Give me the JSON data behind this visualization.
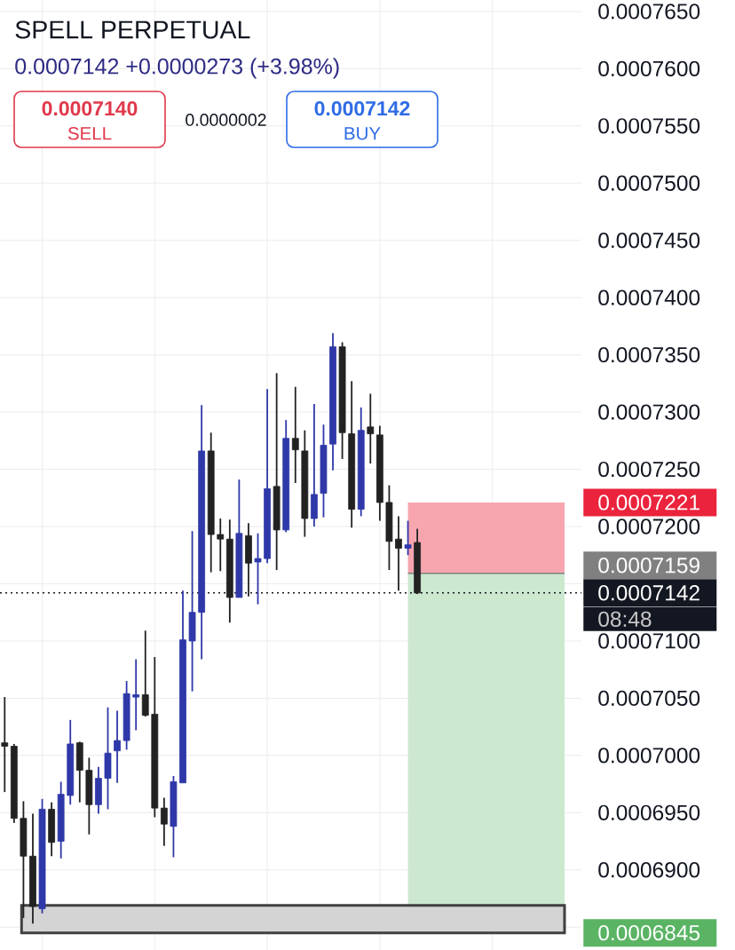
{
  "chart_data": {
    "type": "candlestick",
    "title": "SPELL PERPETUAL",
    "subtitle": "0.0007142 +0.0000273 (+3.98%)",
    "categories": [
      null,
      null,
      null,
      null,
      null,
      null,
      null,
      null,
      null,
      null,
      null,
      null,
      null,
      null,
      null,
      null,
      null,
      null,
      null,
      null,
      null,
      null,
      null,
      null,
      null,
      null,
      null,
      null,
      null,
      null,
      null,
      null,
      null,
      null,
      null,
      null,
      null,
      null,
      null,
      null,
      null,
      null,
      null,
      null,
      null,
      null,
      null,
      null,
      null,
      null,
      null,
      null,
      null,
      null,
      null,
      null,
      null,
      null,
      null,
      null,
      null,
      null
    ],
    "ohlc": [
      [
        0.0007011,
        0.0007051,
        0.0006968,
        0.0007008
      ],
      [
        0.0007008,
        0.000701,
        0.0006941,
        0.0006945
      ],
      [
        0.0006945,
        0.000696,
        0.0006858,
        0.0006912
      ],
      [
        0.0006912,
        0.0006949,
        0.0006853,
        0.0006868
      ],
      [
        0.0006866,
        0.0006962,
        0.0006862,
        0.0006953
      ],
      [
        0.0006953,
        0.0006959,
        0.0006912,
        0.0006924
      ],
      [
        0.0006925,
        0.0006977,
        0.000691,
        0.0006966
      ],
      [
        0.0006965,
        0.0007031,
        0.0006957,
        0.000701
      ],
      [
        0.0007011,
        0.0007012,
        0.0006959,
        0.0006987
      ],
      [
        0.0006987,
        0.0006998,
        0.0006931,
        0.0006957
      ],
      [
        0.0006957,
        0.000699,
        0.0006949,
        0.000698
      ],
      [
        0.000698,
        0.0007042,
        0.0006953,
        0.0007002
      ],
      [
        0.0007004,
        0.0007039,
        0.0006976,
        0.0007013
      ],
      [
        0.0007013,
        0.0007065,
        0.0007005,
        0.0007054
      ],
      [
        0.0007051,
        0.0007084,
        0.0007022,
        0.0007053
      ],
      [
        0.0007053,
        0.0007109,
        0.0007034,
        0.0007035
      ],
      [
        0.0007036,
        0.0007086,
        0.0006946,
        0.0006954
      ],
      [
        0.0006954,
        0.0006963,
        0.0006921,
        0.000694
      ],
      [
        0.0006938,
        0.0006982,
        0.0006911,
        0.0006977
      ],
      [
        0.0006976,
        0.0007144,
        0.0006976,
        0.0007101
      ],
      [
        0.00071,
        0.0007196,
        0.0007056,
        0.0007125
      ],
      [
        0.0007125,
        0.0007306,
        0.0007084,
        0.0007266
      ],
      [
        0.0007266,
        0.0007282,
        0.000716,
        0.0007193
      ],
      [
        0.0007193,
        0.0007207,
        0.0007161,
        0.0007189
      ],
      [
        0.0007189,
        0.0007206,
        0.0007116,
        0.0007138
      ],
      [
        0.0007138,
        0.0007241,
        0.0007138,
        0.0007194
      ],
      [
        0.0007192,
        0.0007203,
        0.0007139,
        0.0007168
      ],
      [
        0.0007169,
        0.0007194,
        0.0007132,
        0.0007172
      ],
      [
        0.0007172,
        0.000732,
        0.0007168,
        0.0007233
      ],
      [
        0.0007235,
        0.0007334,
        0.0007162,
        0.0007197
      ],
      [
        0.0007197,
        0.0007293,
        0.0007195,
        0.0007277
      ],
      [
        0.0007277,
        0.0007322,
        0.0007238,
        0.0007267
      ],
      [
        0.0007266,
        0.0007284,
        0.0007191,
        0.0007207
      ],
      [
        0.0007207,
        0.0007307,
        0.00072,
        0.0007228
      ],
      [
        0.0007229,
        0.0007289,
        0.0007208,
        0.0007271
      ],
      [
        0.0007272,
        0.0007369,
        0.0007249,
        0.0007357
      ],
      [
        0.0007357,
        0.0007361,
        0.0007259,
        0.0007282
      ],
      [
        0.0007281,
        0.0007327,
        0.0007199,
        0.0007215
      ],
      [
        0.0007215,
        0.0007304,
        0.0007209,
        0.0007284
      ],
      [
        0.0007287,
        0.0007316,
        0.0007255,
        0.0007281
      ],
      [
        0.000728,
        0.0007288,
        0.0007205,
        0.0007221
      ],
      [
        0.0007221,
        0.0007236,
        0.0007162,
        0.0007187
      ],
      [
        0.0007189,
        0.0007209,
        0.0007144,
        0.0007181
      ],
      [
        0.0007181,
        0.0007205,
        0.0007175,
        0.0007184
      ],
      [
        0.0007186,
        0.0007198,
        0.0007141,
        0.0007142
      ],
      null,
      null,
      null,
      null,
      null,
      null,
      null,
      null,
      null,
      null,
      null,
      null,
      null,
      null,
      null,
      null,
      null
    ],
    "colors": [
      "#222222",
      "#222222",
      "#222222",
      "#222222",
      "#2f38a8",
      "#222222",
      "#2f38a8",
      "#2f38a8",
      "#222222",
      "#222222",
      "#2f38a8",
      "#2f38a8",
      "#2f38a8",
      "#2f38a8",
      "#2f38a8",
      "#222222",
      "#222222",
      "#222222",
      "#2f38a8",
      "#2f38a8",
      "#2f38a8",
      "#2f38a8",
      "#222222",
      "#222222",
      "#222222",
      "#2f38a8",
      "#222222",
      "#2f38a8",
      "#2f38a8",
      "#222222",
      "#2f38a8",
      "#222222",
      "#222222",
      "#2f38a8",
      "#2f38a8",
      "#2f38a8",
      "#222222",
      "#222222",
      "#2f38a8",
      "#222222",
      "#222222",
      "#222222",
      "#222222",
      "#2f38a8",
      "#222222",
      null,
      null,
      null,
      null,
      null,
      null,
      null,
      null,
      null,
      null,
      null,
      null,
      null,
      null,
      null,
      null,
      null
    ],
    "ylim": [
      0.000683,
      0.000766
    ],
    "yticks": [
      {
        "value": 0.000685,
        "label": null
      },
      {
        "value": 0.00069,
        "label": "0.0006900"
      },
      {
        "value": 0.000695,
        "label": "0.0006950"
      },
      {
        "value": 0.0007,
        "label": "0.0007000"
      },
      {
        "value": 0.000705,
        "label": "0.0007050"
      },
      {
        "value": 0.00071,
        "label": "0.0007100"
      },
      {
        "value": 0.000715,
        "label": null
      },
      {
        "value": 0.00072,
        "label": "0.0007200"
      },
      {
        "value": 0.000725,
        "label": "0.0007250"
      },
      {
        "value": 0.00073,
        "label": "0.0007300"
      },
      {
        "value": 0.000735,
        "label": "0.0007350"
      },
      {
        "value": 0.00074,
        "label": "0.0007400"
      },
      {
        "value": 0.000745,
        "label": "0.0007450"
      },
      {
        "value": 0.00075,
        "label": "0.0007500"
      },
      {
        "value": 0.000755,
        "label": "0.0007550"
      },
      {
        "value": 0.00076,
        "label": "0.0007600"
      },
      {
        "value": 0.000765,
        "label": "0.0007650"
      }
    ],
    "tick_labels": "y",
    "grid": true,
    "bands": [
      {
        "axis": "y",
        "from": 0.0007159,
        "to": 0.0007221,
        "label": "0.0007221",
        "color": "#f7a6b0"
      },
      {
        "axis": "y",
        "from": 0.0006845,
        "to": 0.0007159,
        "label": "0.0006845",
        "color": "#cce8cf"
      },
      {
        "axis": "y",
        "from": 0.0006845,
        "to": 0.0006869,
        "color": "#d4d4d4"
      }
    ],
    "ref_lines": [
      {
        "axis": "y",
        "value": 0.0007159,
        "label": "0.0007159",
        "color": "#808080",
        "line_style": "solid"
      },
      {
        "axis": "y",
        "value": 0.0007142,
        "label": "0.0007142",
        "color": "#131722",
        "line_style": "dotted"
      }
    ],
    "annotations": [
      "0.0007140",
      "SELL",
      "0.0000002",
      "0.0007142",
      "BUY",
      "08:48"
    ]
  }
}
